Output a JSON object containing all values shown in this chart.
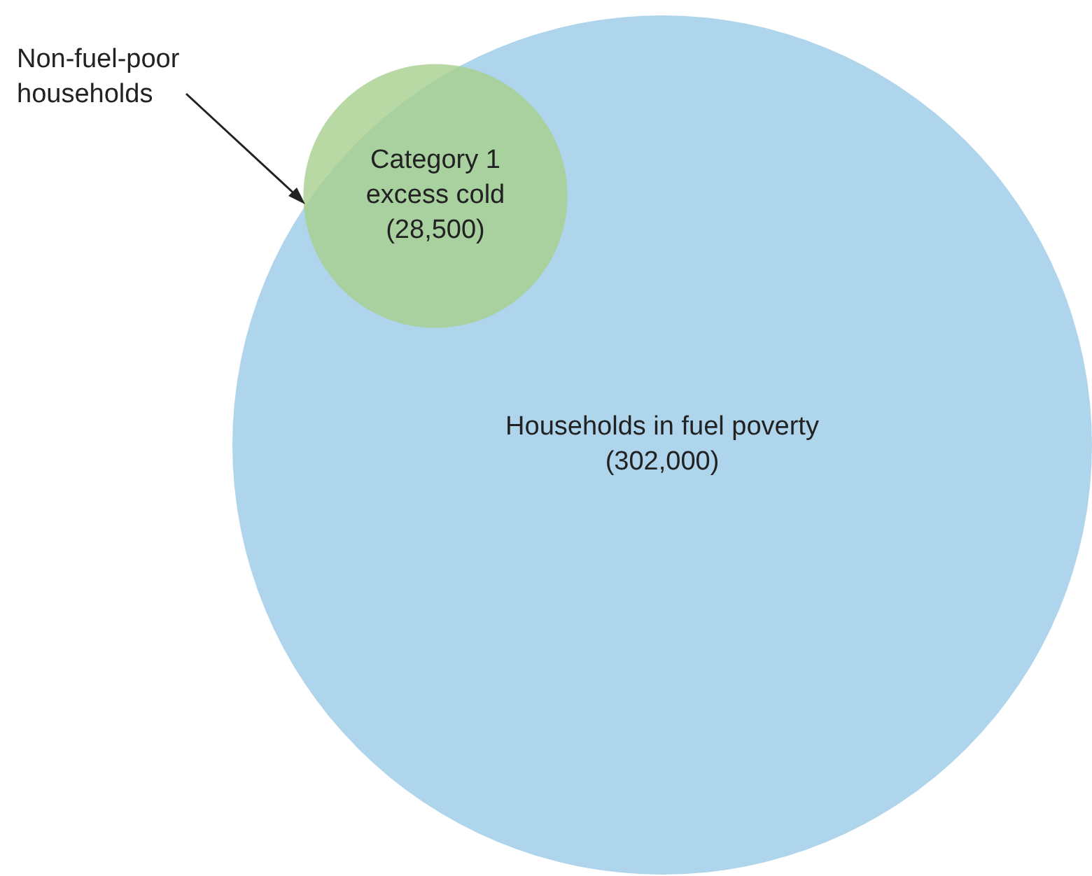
{
  "chart_data": {
    "type": "other",
    "categories": [
      "Households in fuel poverty",
      "Category 1 excess cold"
    ],
    "values": [
      302000,
      28500
    ],
    "value_labels": [
      "(302,000)",
      "(28,500)"
    ],
    "colors": [
      "#aed5eb",
      "#a6d08c"
    ],
    "annotations": [
      "Non-fuel-poor households"
    ]
  }
}
